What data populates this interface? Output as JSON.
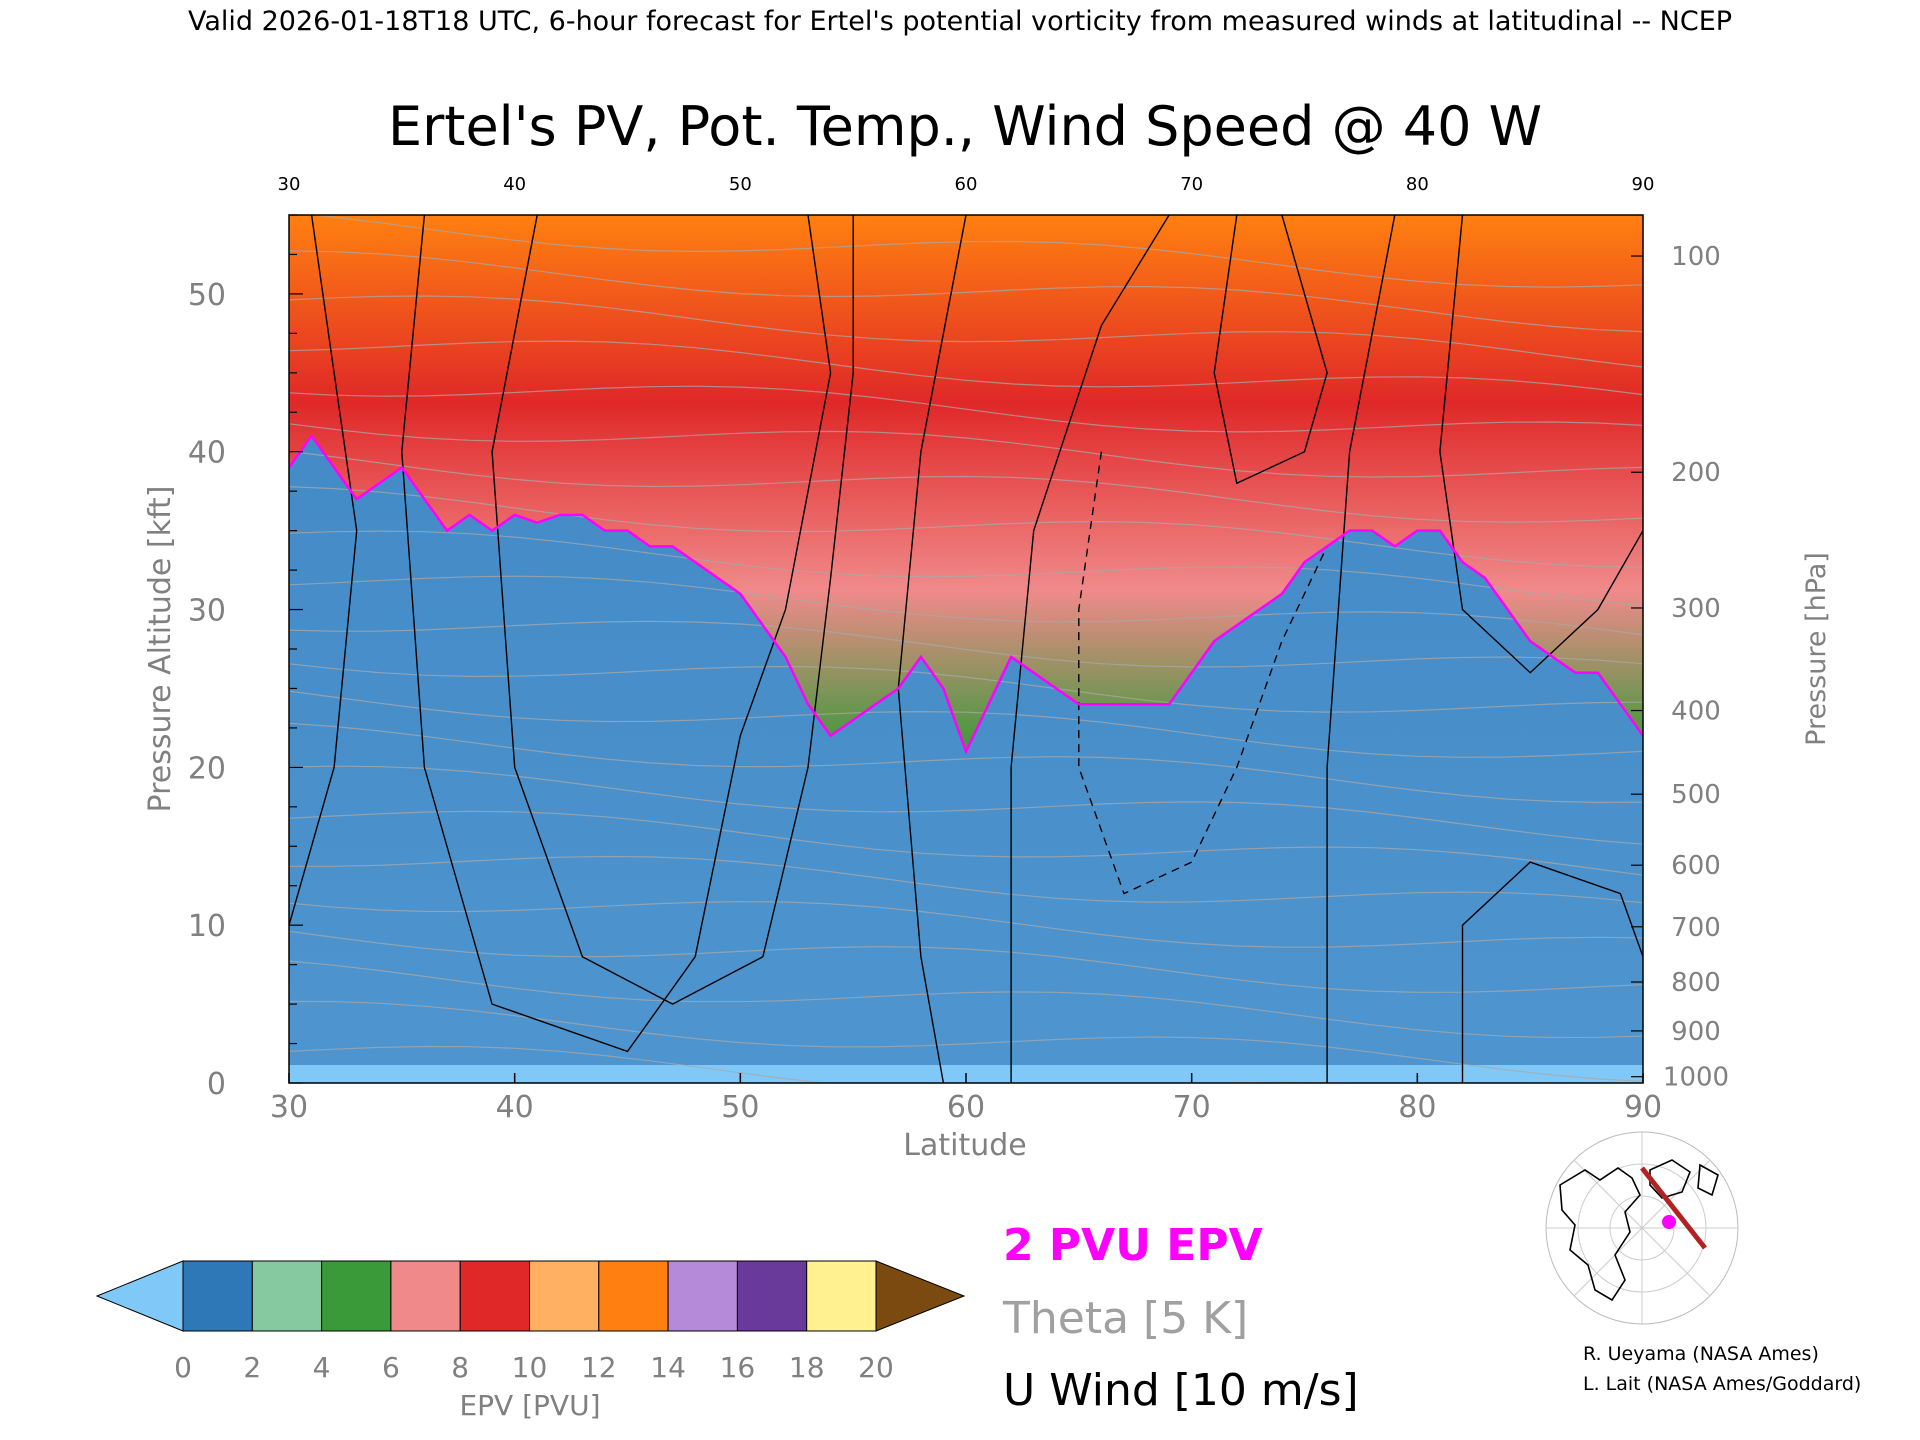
{
  "header": {
    "top_line": "Valid 2026-01-18T18 UTC, 6-hour forecast for Ertel's potential vorticity from measured winds at latitudinal -- NCEP",
    "title": "Ertel's PV, Pot. Temp., Wind Speed @ 40 W"
  },
  "chart_data": {
    "type": "heatmap",
    "title": "Ertel's PV, Pot. Temp., Wind Speed @ 40 W",
    "xlabel": "Latitude",
    "ylabel": "Pressure Altitude [kft]",
    "y2label": "Pressure [hPa]",
    "xlim": [
      30,
      90
    ],
    "ylim": [
      0,
      55
    ],
    "x_ticks": [
      30,
      40,
      50,
      60,
      70,
      80,
      90
    ],
    "y_ticks": [
      0,
      10,
      20,
      30,
      40,
      50
    ],
    "pressure_ticks": [
      {
        "label": "100",
        "kft": 52.4
      },
      {
        "label": "200",
        "kft": 38.7
      },
      {
        "label": "300",
        "kft": 30.1
      },
      {
        "label": "400",
        "kft": 23.6
      },
      {
        "label": "500",
        "kft": 18.3
      },
      {
        "label": "600",
        "kft": 13.8
      },
      {
        "label": "700",
        "kft": 9.9
      },
      {
        "label": "800",
        "kft": 6.4
      },
      {
        "label": "900",
        "kft": 3.3
      },
      {
        "label": "1000",
        "kft": 0.4
      }
    ],
    "tropopause_2pvu_kft": [
      [
        30,
        39
      ],
      [
        31,
        41
      ],
      [
        32,
        39
      ],
      [
        33,
        37
      ],
      [
        34,
        38
      ],
      [
        35,
        39
      ],
      [
        36,
        37
      ],
      [
        37,
        35
      ],
      [
        38,
        36
      ],
      [
        39,
        35
      ],
      [
        40,
        36
      ],
      [
        41,
        35.5
      ],
      [
        42,
        36
      ],
      [
        43,
        36
      ],
      [
        44,
        35
      ],
      [
        45,
        35
      ],
      [
        46,
        34
      ],
      [
        47,
        34
      ],
      [
        48,
        33
      ],
      [
        49,
        32
      ],
      [
        50,
        31
      ],
      [
        51,
        29
      ],
      [
        52,
        27
      ],
      [
        53,
        24
      ],
      [
        54,
        22
      ],
      [
        55,
        23
      ],
      [
        56,
        24
      ],
      [
        57,
        25
      ],
      [
        58,
        27
      ],
      [
        59,
        25
      ],
      [
        60,
        21
      ],
      [
        61,
        24
      ],
      [
        62,
        27
      ],
      [
        63,
        26
      ],
      [
        64,
        25
      ],
      [
        65,
        24
      ],
      [
        66,
        24
      ],
      [
        67,
        24
      ],
      [
        68,
        24
      ],
      [
        69,
        24
      ],
      [
        70,
        26
      ],
      [
        71,
        28
      ],
      [
        72,
        29
      ],
      [
        73,
        30
      ],
      [
        74,
        31
      ],
      [
        75,
        33
      ],
      [
        76,
        34
      ],
      [
        77,
        35
      ],
      [
        78,
        35
      ],
      [
        79,
        34
      ],
      [
        80,
        35
      ],
      [
        81,
        35
      ],
      [
        82,
        33
      ],
      [
        83,
        32
      ],
      [
        84,
        30
      ],
      [
        85,
        28
      ],
      [
        86,
        27
      ],
      [
        87,
        26
      ],
      [
        88,
        26
      ],
      [
        89,
        24
      ],
      [
        90,
        22
      ]
    ],
    "colorbar": {
      "label": "EPV [PVU]",
      "tick_labels": [
        "0",
        "2",
        "4",
        "6",
        "8",
        "10",
        "12",
        "14",
        "16",
        "18",
        "20"
      ],
      "colors": [
        "#7fc8f8",
        "#2f78b8",
        "#86c8a0",
        "#3a9a3a",
        "#f08a8a",
        "#e02828",
        "#ffb060",
        "#ff8010",
        "#b58ad8",
        "#6a3a9a",
        "#fff090",
        "#7a4a10"
      ]
    },
    "legend": {
      "epv": "2 PVU EPV",
      "theta": "Theta [5 K]",
      "wind": "U Wind [10 m/s]"
    },
    "colors": {
      "epv_line": "#ff00ff",
      "theta_line": "#a0a0a0",
      "wind_line": "#000000"
    }
  },
  "inset_map": {
    "marker_color": "#ff00ff",
    "track_color": "#b22222"
  },
  "credits": {
    "line1": "R. Ueyama (NASA Ames)",
    "line2": "L. Lait (NASA Ames/Goddard)"
  }
}
